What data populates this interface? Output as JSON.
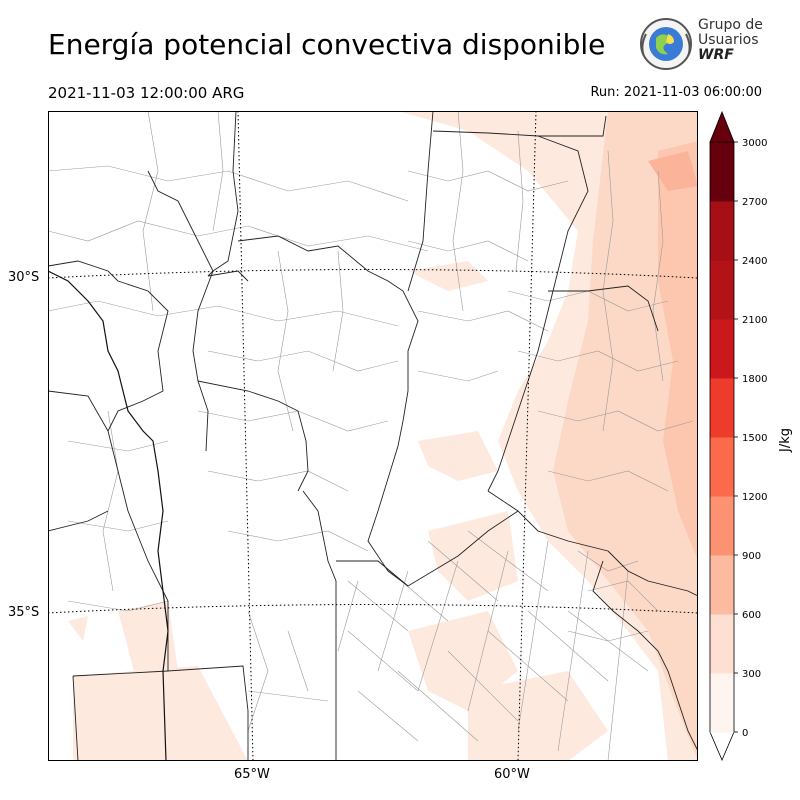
{
  "title": "Energía potencial convectiva disponible",
  "valid_time": "2021-11-03 12:00:00 ARG",
  "run_time": "Run: 2021-11-03 06:00:00",
  "logo": {
    "line1": "Grupo de",
    "line2": "Usuarios",
    "line3": "WRF"
  },
  "map": {
    "lat_labels": [
      "30°S",
      "35°S"
    ],
    "lon_labels": [
      "65°W",
      "60°W"
    ]
  },
  "colorbar": {
    "label": "J/kg",
    "ticks": [
      "0",
      "300",
      "600",
      "900",
      "1200",
      "1500",
      "1800",
      "2100",
      "2400",
      "2700",
      "3000"
    ],
    "colors": [
      "#fff5f0",
      "#fee0d2",
      "#fcbba1",
      "#fc9272",
      "#fb6a4a",
      "#ef3b2c",
      "#cb181d",
      "#b31217",
      "#a50f15",
      "#67000d"
    ],
    "extend": "both"
  }
}
